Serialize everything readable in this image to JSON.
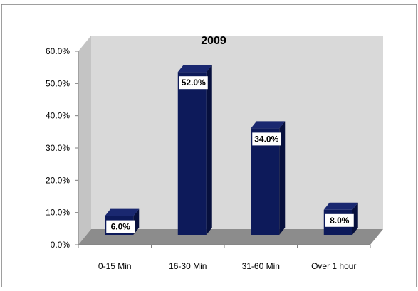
{
  "chart_data": {
    "type": "bar",
    "title": "2009",
    "categories": [
      "0-15 Min",
      "16-30 Min",
      "31-60 Min",
      "Over 1 hour"
    ],
    "values": [
      6.0,
      52.0,
      34.0,
      8.0
    ],
    "value_labels": [
      "6.0%",
      "52.0%",
      "34.0%",
      "8.0%"
    ],
    "y_ticks": [
      "0.0%",
      "10.0%",
      "20.0%",
      "30.0%",
      "40.0%",
      "50.0%",
      "60.0%"
    ],
    "ylim": [
      0,
      60
    ],
    "xlabel": "",
    "ylabel": "",
    "grid": false,
    "legend": "none",
    "three_d": true,
    "colors": {
      "bar_front": "#0d1a5a",
      "bar_side": "#07103d",
      "bar_top": "#1a2870",
      "back_wall": "#d9d9d9",
      "floor": "#8c8c8c",
      "floor_edge": "#6e6e6e",
      "label_bg": "#ffffff",
      "text": "#000000"
    }
  }
}
